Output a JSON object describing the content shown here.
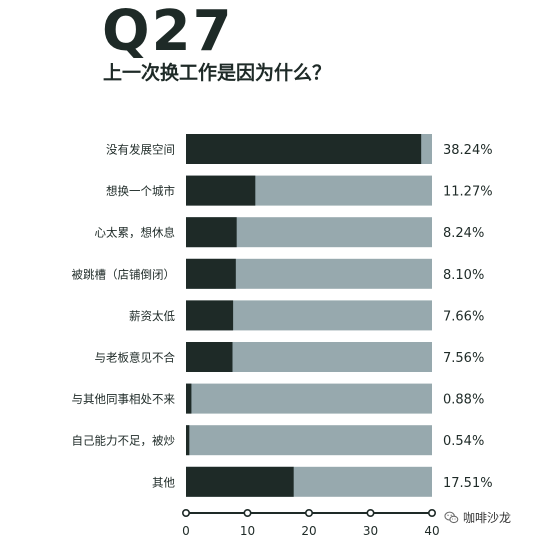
{
  "header": {
    "question_number": "Q27",
    "question_title": "上一次换工作是因为什么？"
  },
  "watermark": {
    "text": "咖啡沙龙",
    "icon": "wechat-icon"
  },
  "colors": {
    "bar_value": "#1e2a27",
    "bar_track": "#97a9ae",
    "text": "#1e2a27"
  },
  "chart_data": {
    "type": "bar",
    "orientation": "horizontal",
    "categories": [
      "没有发展空间",
      "想换一个城市",
      "心太累，想休息",
      "被跳槽（店铺倒闭）",
      "薪资太低",
      "与老板意见不合",
      "与其他同事相处不来",
      "自己能力不足，被炒",
      "其他"
    ],
    "values": [
      38.24,
      11.27,
      8.24,
      8.1,
      7.66,
      7.56,
      0.88,
      0.54,
      17.51
    ],
    "value_labels": [
      "38.24%",
      "11.27%",
      "8.24%",
      "8.10%",
      "7.66%",
      "7.56%",
      "0.88%",
      "0.54%",
      "17.51%"
    ],
    "xlim": [
      0,
      40
    ],
    "xticks": [
      "0",
      "10",
      "20",
      "30",
      "40"
    ],
    "track_max": 40,
    "grid": false,
    "legend": "none"
  }
}
